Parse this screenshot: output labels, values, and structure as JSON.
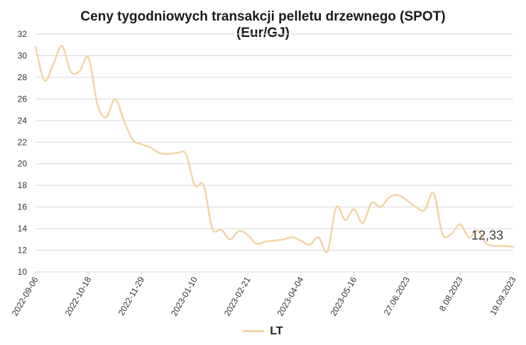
{
  "chart_data": {
    "type": "line",
    "title_line1": "Ceny tygodniowych transakcji pelletu drzewnego (SPOT)",
    "title_line2": "(Eur/GJ)",
    "xlabel": "",
    "ylabel": "",
    "ylim": [
      10,
      32
    ],
    "yticks": [
      10,
      12,
      14,
      16,
      18,
      20,
      22,
      24,
      26,
      28,
      30,
      32
    ],
    "x_tick_labels": [
      "2022-09-06",
      "2022-10-18",
      "2022-11-29",
      "2023-01-10",
      "2023-02-21",
      "2023-04-04",
      "2023-05-16",
      "27.06.2023",
      "8.08.2023",
      "19.09.2023"
    ],
    "grid": true,
    "legend_position": "bottom",
    "end_label": "12,33",
    "series": [
      {
        "name": "LT",
        "color": "#f1d6a8",
        "values": [
          30.8,
          27.7,
          29.2,
          30.9,
          28.5,
          28.6,
          29.8,
          25.5,
          24.3,
          26.0,
          24.0,
          22.2,
          21.8,
          21.5,
          21.0,
          20.9,
          21.0,
          20.9,
          18.0,
          18.0,
          14.0,
          13.9,
          13.0,
          13.8,
          13.4,
          12.6,
          12.8,
          12.9,
          13.0,
          13.2,
          12.9,
          12.5,
          13.2,
          11.9,
          16.0,
          14.8,
          15.8,
          14.5,
          16.4,
          16.0,
          16.9,
          17.1,
          16.6,
          16.0,
          15.7,
          17.3,
          13.5,
          13.5,
          14.4,
          13.2,
          13.8,
          12.6,
          12.4,
          12.4,
          12.33
        ]
      }
    ]
  }
}
